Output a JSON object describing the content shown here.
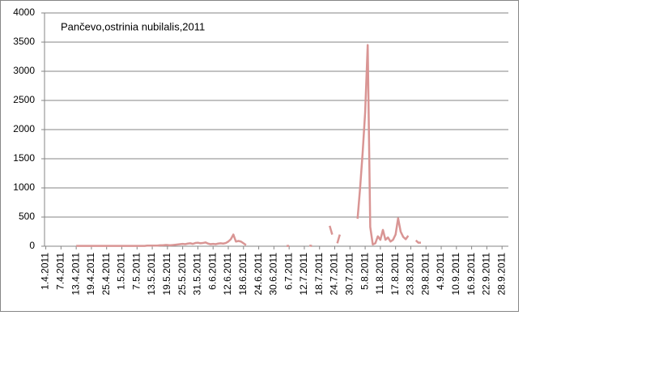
{
  "chart_data": {
    "type": "line",
    "title": "Pančevo,ostrinia nubilalis,2011",
    "categories": [
      "1.4.2011",
      null,
      null,
      null,
      null,
      null,
      "7.4.2011",
      null,
      null,
      null,
      null,
      null,
      "13.4.2011",
      null,
      null,
      null,
      null,
      null,
      "19.4.2011",
      null,
      null,
      null,
      null,
      null,
      "25.4.2011",
      null,
      null,
      null,
      null,
      null,
      "1.5.2011",
      null,
      null,
      null,
      null,
      null,
      "7.5.2011",
      null,
      null,
      null,
      null,
      null,
      "13.5.2011",
      null,
      null,
      null,
      null,
      null,
      "19.5.2011",
      null,
      null,
      null,
      null,
      null,
      "25.5.2011",
      null,
      null,
      null,
      null,
      null,
      "31.5.2011",
      null,
      null,
      null,
      null,
      null,
      "6.6.2011",
      null,
      null,
      null,
      null,
      null,
      "12.6.2011",
      null,
      null,
      null,
      null,
      null,
      "18.6.2011",
      null,
      null,
      null,
      null,
      null,
      "24.6.2011",
      null,
      null,
      null,
      null,
      null,
      "30.6.2011",
      null,
      null,
      null,
      null,
      null,
      "6.7.2011",
      null,
      null,
      null,
      null,
      null,
      "12.7.2011",
      null,
      null,
      null,
      null,
      null,
      "18.7.2011",
      null,
      null,
      null,
      null,
      null,
      "24.7.2011",
      null,
      null,
      null,
      null,
      null,
      "30.7.2011",
      null,
      null,
      null,
      null,
      null,
      "5.8.2011",
      null,
      null,
      null,
      null,
      null,
      "11.8.2011",
      null,
      null,
      null,
      null,
      null,
      "17.8.2011",
      null,
      null,
      null,
      null,
      null,
      "23.8.2011",
      null,
      null,
      null,
      null,
      null,
      "29.8.2011",
      null,
      null,
      null,
      null,
      null,
      "4.9.2011",
      null,
      null,
      null,
      null,
      null,
      "10.9.2011",
      null,
      null,
      null,
      null,
      null,
      "16.9.2011",
      null,
      null,
      null,
      null,
      null,
      "22.9.2011",
      null,
      null,
      null,
      null,
      null,
      "28.9.2011",
      null,
      null
    ],
    "values": [
      null,
      null,
      null,
      null,
      null,
      null,
      null,
      null,
      null,
      null,
      null,
      null,
      5,
      5,
      5,
      5,
      5,
      5,
      5,
      5,
      5,
      5,
      5,
      5,
      5,
      5,
      5,
      5,
      5,
      5,
      5,
      5,
      5,
      5,
      5,
      5,
      5,
      5,
      5,
      5,
      10,
      10,
      10,
      10,
      10,
      15,
      15,
      20,
      20,
      15,
      20,
      25,
      30,
      35,
      40,
      35,
      45,
      50,
      40,
      55,
      60,
      50,
      55,
      65,
      45,
      35,
      40,
      35,
      45,
      50,
      45,
      55,
      80,
      120,
      200,
      80,
      90,
      80,
      50,
      20,
      null,
      null,
      null,
      null,
      null,
      null,
      null,
      null,
      null,
      null,
      null,
      null,
      null,
      null,
      null,
      5,
      5,
      null,
      null,
      null,
      null,
      null,
      null,
      null,
      10,
      5,
      null,
      null,
      null,
      null,
      null,
      null,
      350,
      200,
      null,
      50,
      200,
      null,
      null,
      null,
      null,
      null,
      null,
      470,
      1000,
      1600,
      2300,
      3450,
      330,
      30,
      50,
      170,
      110,
      280,
      110,
      150,
      80,
      110,
      200,
      480,
      250,
      160,
      120,
      180,
      null,
      null,
      100,
      60,
      60,
      null,
      null,
      null,
      null,
      null,
      null,
      null,
      null,
      null,
      null,
      null,
      null,
      null,
      null,
      null,
      null,
      null,
      null,
      null,
      null,
      null,
      null,
      null,
      null,
      null,
      null,
      null,
      null,
      null,
      null,
      null,
      null,
      null,
      null
    ],
    "color": "#d99594",
    "ylim": [
      0,
      4000
    ],
    "yticks": [
      0,
      500,
      1000,
      1500,
      2000,
      2500,
      3000,
      3500,
      4000
    ],
    "grid": true
  }
}
